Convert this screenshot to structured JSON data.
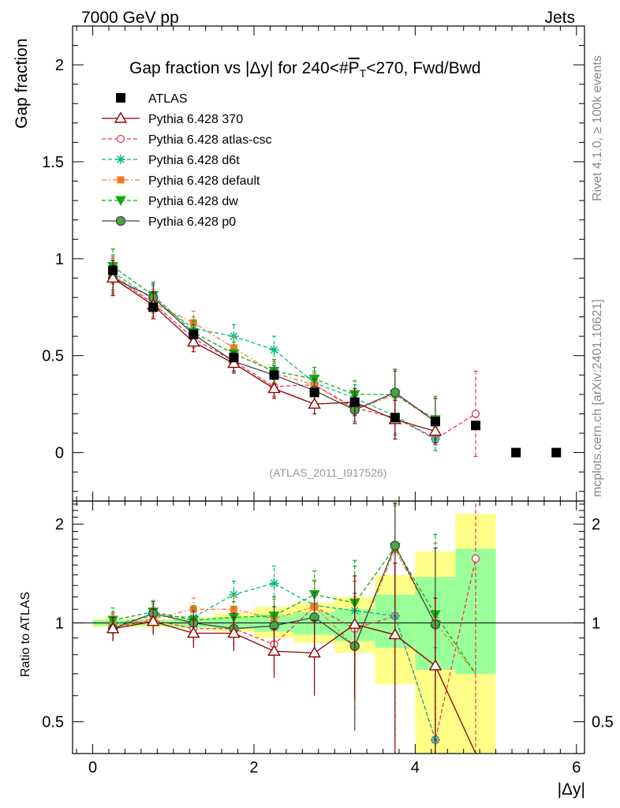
{
  "header": {
    "left": "7000 GeV pp",
    "right": "Jets"
  },
  "side_labels": {
    "rivet": "Rivet 4.1.0, ≥ 100k events",
    "mcplots": "mcplots.cern.ch [arXiv:2401.10621]"
  },
  "chart_data": {
    "type": "scatter",
    "title_pre": "Gap fraction vs |Δy| for 240<#",
    "title_p": "P",
    "title_sub": "T",
    "title_post": "<270, Fwd/Bwd",
    "xlabel": "|Δy|",
    "ylabel": "Gap fraction",
    "ratio_ylabel": "Ratio to ATLAS",
    "xlim": [
      -0.25,
      6.1
    ],
    "ylim": [
      -0.25,
      2.2
    ],
    "ratio_ylim": [
      0.4,
      2.35
    ],
    "x_ticks": [
      0,
      2,
      4,
      6
    ],
    "x_tick_labels": [
      "0",
      "2",
      "4",
      "6"
    ],
    "y_ticks": [
      0,
      0.5,
      1,
      1.5,
      2
    ],
    "y_tick_labels": [
      "0",
      "0.5",
      "1",
      "1.5",
      "2"
    ],
    "ratio_ticks": [
      0.5,
      1,
      2
    ],
    "ratio_tick_labels": [
      "0.5",
      "1",
      "2"
    ],
    "watermark": "(ATLAS_2011_I917526)",
    "x": [
      0.25,
      0.75,
      1.25,
      1.75,
      2.25,
      2.75,
      3.25,
      3.75,
      4.25,
      4.75,
      5.25,
      5.75
    ],
    "atlas": {
      "name": "ATLAS",
      "values": [
        0.94,
        0.75,
        0.61,
        0.49,
        0.4,
        0.31,
        0.26,
        0.18,
        0.16,
        0.14,
        0.0,
        0.0
      ],
      "band_lo": [
        0.97,
        0.97,
        0.96,
        0.94,
        0.9,
        0.87,
        0.81,
        0.65,
        0.4,
        0.38,
        null,
        null
      ],
      "band_hi": [
        1.03,
        1.03,
        1.04,
        1.07,
        1.12,
        1.15,
        1.2,
        1.4,
        1.65,
        2.15,
        null,
        null
      ],
      "inner_lo": [
        0.98,
        0.98,
        0.97,
        0.96,
        0.94,
        0.92,
        0.88,
        0.84,
        0.72,
        0.7,
        null,
        null
      ],
      "inner_hi": [
        1.02,
        1.02,
        1.03,
        1.04,
        1.06,
        1.08,
        1.1,
        1.22,
        1.38,
        1.68,
        null,
        null
      ]
    },
    "series": [
      {
        "name": "Pythia 6.428 370",
        "color": "#8b0000",
        "marker": "triangle",
        "dash": "",
        "values": [
          0.9,
          0.76,
          0.57,
          0.46,
          0.33,
          0.25,
          0.26,
          0.17,
          0.11,
          null,
          null,
          null
        ],
        "errors": [
          0.09,
          0.07,
          0.05,
          0.05,
          0.05,
          0.05,
          0.07,
          0.1,
          0.06,
          null,
          null,
          null
        ],
        "ratio": [
          0.96,
          1.01,
          0.93,
          0.93,
          0.82,
          0.81,
          0.99,
          0.92,
          0.74,
          0.4,
          null,
          null
        ],
        "ratio_err": [
          0.08,
          0.09,
          0.09,
          0.11,
          0.14,
          0.21,
          0.4,
          0.6,
          0.45,
          null,
          null,
          null
        ]
      },
      {
        "name": "Pythia 6.428 atlas-csc",
        "color": "#ee3355",
        "marker": "circle-open",
        "dash": "5,3",
        "values": [
          0.91,
          0.77,
          0.59,
          0.47,
          0.34,
          0.35,
          0.23,
          0.18,
          0.07,
          0.2,
          null,
          null
        ],
        "errors": [
          0.09,
          0.07,
          0.05,
          0.05,
          0.05,
          0.06,
          0.07,
          0.09,
          0.06,
          0.22,
          null,
          null
        ],
        "ratio": [
          0.97,
          1.02,
          0.96,
          0.96,
          0.86,
          1.12,
          0.96,
          1.05,
          0.44,
          1.57,
          null,
          null
        ],
        "ratio_err": [
          0.09,
          0.09,
          0.09,
          0.11,
          0.15,
          0.22,
          0.38,
          0.6,
          0.4,
          1.5,
          null,
          null
        ]
      },
      {
        "name": "Pythia 6.428 d6t",
        "color": "#00bb88",
        "marker": "star",
        "dash": "5,3",
        "values": [
          0.93,
          0.79,
          0.64,
          0.6,
          0.53,
          0.36,
          0.28,
          0.19,
          0.07,
          null,
          null,
          null
        ],
        "errors": [
          0.09,
          0.07,
          0.06,
          0.06,
          0.07,
          0.06,
          0.07,
          0.09,
          0.06,
          null,
          null,
          null
        ],
        "ratio": [
          0.99,
          1.05,
          1.04,
          1.22,
          1.32,
          1.13,
          1.09,
          1.05,
          0.44,
          null,
          null,
          null
        ],
        "ratio_err": [
          0.09,
          0.09,
          0.09,
          0.12,
          0.17,
          0.22,
          0.4,
          0.6,
          0.4,
          null,
          null,
          null
        ]
      },
      {
        "name": "Pythia 6.428 default",
        "color": "#ff7722",
        "marker": "square",
        "dash": "6,3,2,3",
        "values": [
          0.92,
          0.77,
          0.67,
          0.54,
          0.41,
          0.35,
          0.22,
          0.3,
          0.16,
          null,
          null,
          null
        ],
        "errors": [
          0.09,
          0.07,
          0.06,
          0.06,
          0.06,
          0.06,
          0.07,
          0.12,
          0.12,
          null,
          null,
          null
        ],
        "ratio": [
          0.98,
          1.03,
          1.1,
          1.1,
          1.03,
          1.12,
          0.85,
          1.67,
          1.0,
          0.7,
          null,
          null
        ],
        "ratio_err": [
          0.09,
          0.09,
          0.09,
          0.12,
          0.15,
          0.22,
          0.35,
          0.6,
          0.75,
          null,
          null,
          null
        ]
      },
      {
        "name": "Pythia 6.428 dw",
        "color": "#11aa11",
        "marker": "triangle-down",
        "dash": "5,3",
        "values": [
          0.96,
          0.81,
          0.62,
          0.51,
          0.42,
          0.38,
          0.3,
          0.3,
          0.17,
          null,
          null,
          null
        ],
        "errors": [
          0.09,
          0.07,
          0.06,
          0.06,
          0.06,
          0.06,
          0.07,
          0.12,
          0.12,
          null,
          null,
          null
        ],
        "ratio": [
          1.02,
          1.08,
          1.02,
          1.04,
          1.05,
          1.22,
          1.15,
          1.7,
          1.06,
          0.7,
          null,
          null
        ],
        "ratio_err": [
          0.09,
          0.09,
          0.09,
          0.12,
          0.15,
          0.22,
          0.4,
          0.6,
          0.8,
          null,
          null,
          null
        ]
      },
      {
        "name": "Pythia 6.428 p0",
        "color": "#444444",
        "marker": "circle-filled",
        "dash": "",
        "values": [
          0.9,
          0.8,
          0.61,
          0.47,
          0.4,
          0.32,
          0.22,
          0.31,
          0.16,
          null,
          null,
          null
        ],
        "errors": [
          0.09,
          0.07,
          0.05,
          0.05,
          0.05,
          0.06,
          0.07,
          0.12,
          0.12,
          null,
          null,
          null
        ],
        "ratio": [
          0.96,
          1.07,
          1.0,
          0.96,
          0.98,
          1.04,
          0.85,
          1.72,
          0.99,
          null,
          null,
          null
        ],
        "ratio_err": [
          0.08,
          0.09,
          0.09,
          0.11,
          0.14,
          0.2,
          0.38,
          0.6,
          0.7,
          null,
          null,
          null
        ]
      }
    ]
  }
}
